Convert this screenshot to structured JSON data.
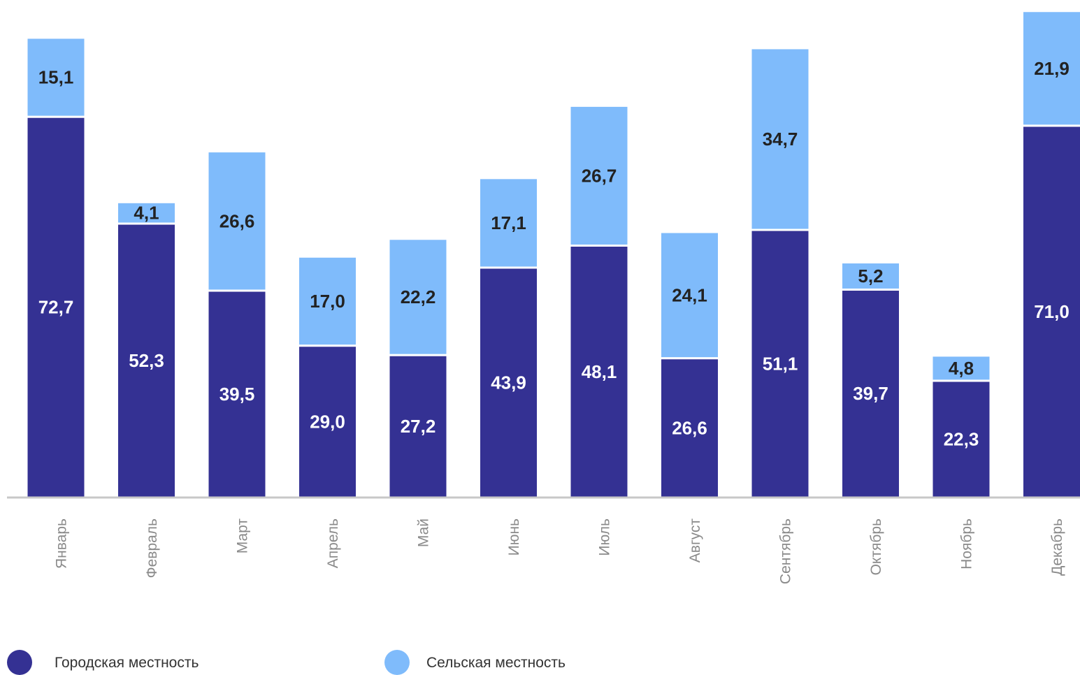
{
  "chart_data": {
    "type": "bar",
    "stacked": true,
    "categories": [
      "Январь",
      "Февраль",
      "Март",
      "Апрель",
      "Май",
      "Июнь",
      "Июль",
      "Август",
      "Сентябрь",
      "Октябрь",
      "Ноябрь",
      "Декабрь"
    ],
    "series": [
      {
        "name": "Городская местность",
        "color": "#343193",
        "label_color": "#ffffff",
        "values": [
          72.7,
          52.3,
          39.5,
          29.0,
          27.2,
          43.9,
          48.1,
          26.6,
          51.1,
          39.7,
          22.3,
          71.0
        ],
        "labels": [
          "72,7",
          "52,3",
          "39,5",
          "29,0",
          "27,2",
          "43,9",
          "48,1",
          "26,6",
          "51,1",
          "39,7",
          "22,3",
          "71,0"
        ]
      },
      {
        "name": "Сельская местность",
        "color": "#7fbbfb",
        "label_color": "#222222",
        "values": [
          15.1,
          4.1,
          26.6,
          17.0,
          22.2,
          17.1,
          26.7,
          24.1,
          34.7,
          5.2,
          4.8,
          21.9
        ],
        "labels": [
          "15,1",
          "4,1",
          "26,6",
          "17,0",
          "22,2",
          "17,1",
          "26,7",
          "24,1",
          "34,7",
          "5,2",
          "4,8",
          "21,9"
        ]
      }
    ],
    "title": "",
    "xlabel": "",
    "ylabel": "",
    "ylim": [
      0,
      95
    ],
    "grid": false,
    "axis_color": "#c8c8c8",
    "legend_position": "bottom-left"
  }
}
